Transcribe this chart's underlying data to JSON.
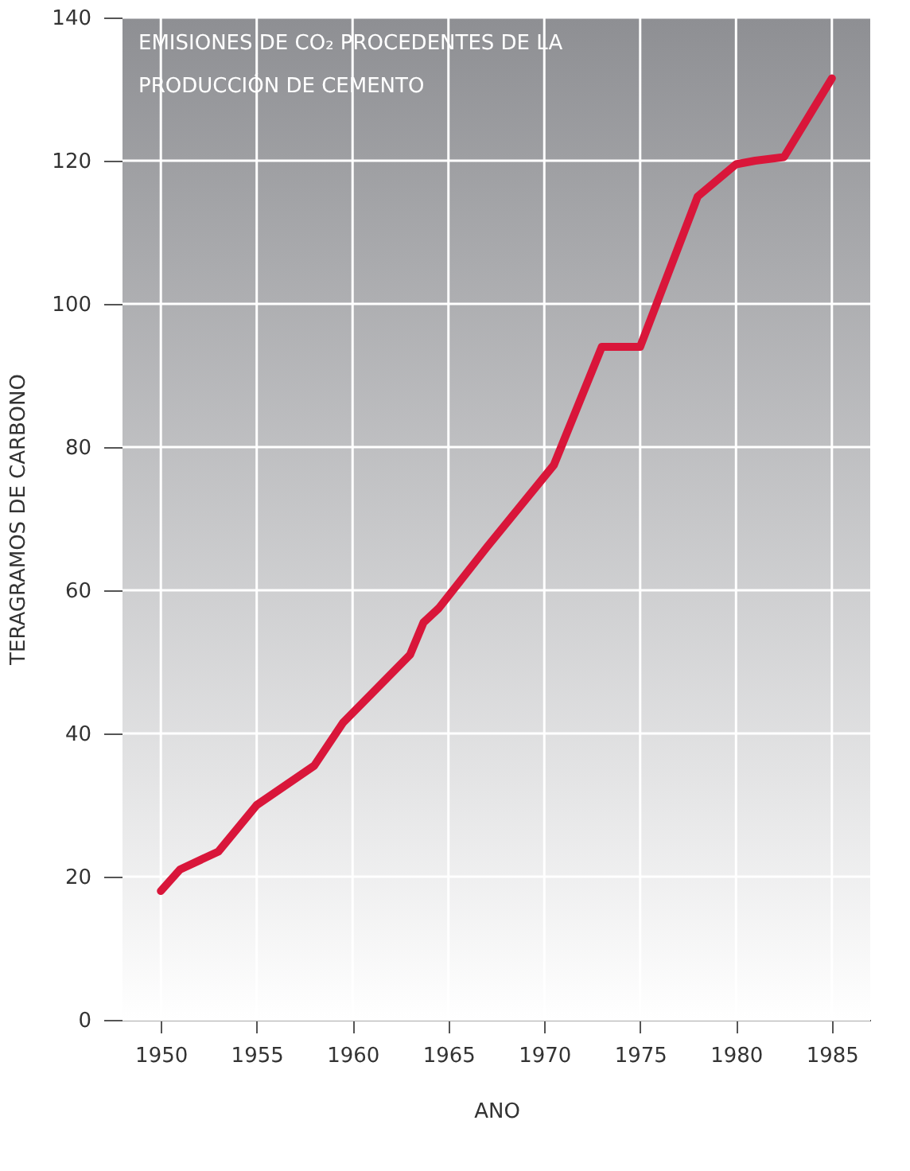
{
  "chart_data": {
    "type": "line",
    "title": "EMISIONES DE CO₂ PROCEDENTES DE LA PRODUCCIÓN DE CEMENTO",
    "xlabel": "ANO",
    "ylabel": "TERAGRAMOS DE CARBONO",
    "x": [
      1950,
      1951,
      1953,
      1955,
      1958,
      1959.5,
      1963,
      1963.7,
      1964.5,
      1967,
      1970.5,
      1973,
      1975,
      1978,
      1980,
      1981,
      1982.5,
      1985
    ],
    "series": [
      {
        "color": "#d9163a",
        "values": [
          18,
          21,
          23.5,
          30,
          35.5,
          41.5,
          51,
          55.5,
          57.5,
          66,
          77.5,
          94,
          94,
          115,
          119.5,
          120,
          120.5,
          131.5
        ]
      }
    ],
    "xlim": [
      1948,
      1987
    ],
    "xticks": [
      1950,
      1955,
      1960,
      1965,
      1970,
      1975,
      1980,
      1985
    ],
    "ylim": [
      0,
      140
    ],
    "yticks": [
      0,
      20,
      40,
      60,
      80,
      100,
      120,
      140
    ],
    "grid": true,
    "line_style": "solid",
    "marker": "none"
  }
}
